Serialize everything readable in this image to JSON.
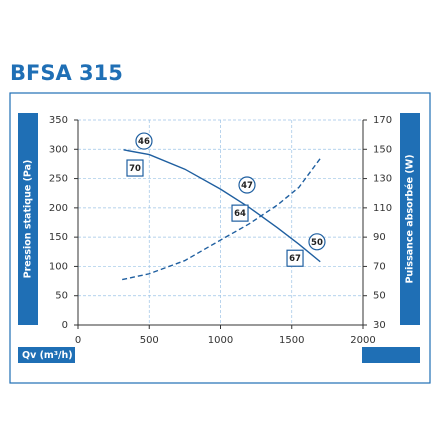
{
  "chart_data": {
    "type": "line",
    "title": "BFSA 315",
    "x_label": "Qv (m³/h)",
    "y_label": "Pression statique (Pa)",
    "y2_label": "Puissance absorbée (W)",
    "xlim": [
      0,
      2000
    ],
    "xticks": [
      0,
      500,
      1000,
      1500,
      2000
    ],
    "ylim": [
      0,
      350
    ],
    "yticks": [
      0,
      50,
      100,
      150,
      200,
      250,
      300,
      350
    ],
    "y2lim": [
      30,
      170
    ],
    "y2ticks": [
      30,
      50,
      70,
      90,
      110,
      130,
      150,
      170
    ],
    "grid": true,
    "series": [
      {
        "x": [
          320,
          500,
          750,
          1000,
          1200,
          1400,
          1550,
          1700
        ],
        "values": [
          299,
          291,
          266,
          232,
          201,
          166,
          138,
          108
        ],
        "color": "#1f5fa0",
        "dash": false
      },
      {
        "x": [
          310,
          500,
          750,
          1000,
          1200,
          1400,
          1550,
          1710
        ],
        "values": [
          61,
          65,
          74,
          88,
          99,
          112,
          124,
          145
        ],
        "color": "#1f5fa0",
        "dash": true,
        "axis": "y2"
      }
    ],
    "annotations": [
      {
        "label": "46",
        "shape": "circle",
        "x": 463,
        "y": 314
      },
      {
        "label": "47",
        "shape": "circle",
        "x": 1186,
        "y": 239
      },
      {
        "label": "50",
        "shape": "circle",
        "x": 1677,
        "y": 142
      },
      {
        "label": "70",
        "shape": "square",
        "x": 400,
        "y": 268
      },
      {
        "label": "64",
        "shape": "square",
        "x": 1137,
        "y": 191
      },
      {
        "label": "67",
        "shape": "square",
        "x": 1523,
        "y": 114
      }
    ]
  }
}
